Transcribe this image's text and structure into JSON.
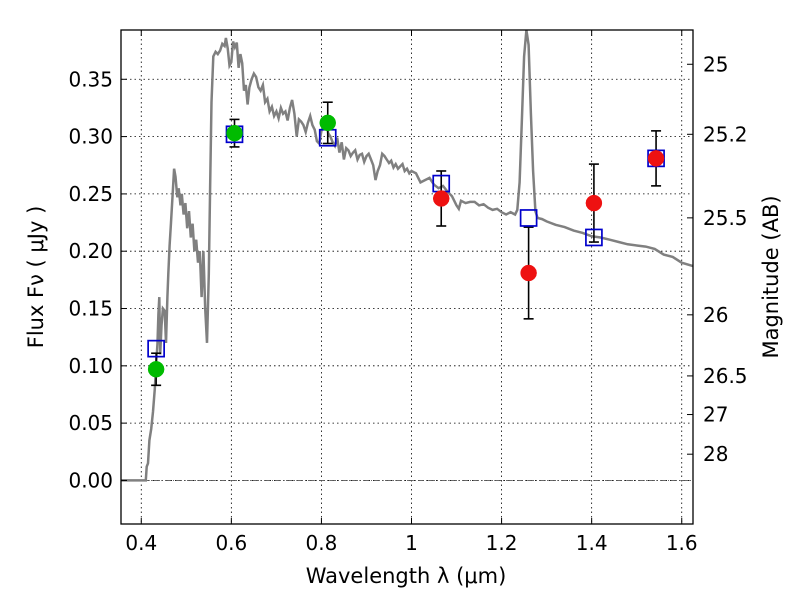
{
  "chart_data": {
    "type": "scatter",
    "xlabel": "Wavelength  λ (μm)",
    "ylabel": "Flux  Fν  ( μJy )",
    "y2label": "Magnitude (AB)",
    "xlim": [
      0.355,
      1.625
    ],
    "ylim": [
      -0.038,
      0.393
    ],
    "grid": true,
    "colors": {
      "sed": "#808080",
      "model_box": "#0000cc",
      "detection_green": "#00bb00",
      "detection_red": "#ee1111",
      "errorbar": "#000000"
    },
    "x_ticks": [
      {
        "value": 0.4,
        "label": "0.4"
      },
      {
        "value": 0.6,
        "label": "0.6"
      },
      {
        "value": 0.8,
        "label": "0.8"
      },
      {
        "value": 1.0,
        "label": "1"
      },
      {
        "value": 1.2,
        "label": "1.2"
      },
      {
        "value": 1.4,
        "label": "1.4"
      },
      {
        "value": 1.6,
        "label": "1.6"
      }
    ],
    "y_ticks": [
      {
        "value": 0.0,
        "label": "0.00"
      },
      {
        "value": 0.05,
        "label": "0.05"
      },
      {
        "value": 0.1,
        "label": "0.10"
      },
      {
        "value": 0.15,
        "label": "0.15"
      },
      {
        "value": 0.2,
        "label": "0.20"
      },
      {
        "value": 0.25,
        "label": "0.25"
      },
      {
        "value": 0.3,
        "label": "0.30"
      },
      {
        "value": 0.35,
        "label": "0.35"
      }
    ],
    "mag_ticks": [
      {
        "value": 0.3631,
        "label": "25"
      },
      {
        "value": 0.302,
        "label": "25.2"
      },
      {
        "value": 0.2291,
        "label": "25.5"
      },
      {
        "value": 0.1445,
        "label": "26"
      },
      {
        "value": 0.0912,
        "label": "26.5"
      },
      {
        "value": 0.0575,
        "label": "27"
      },
      {
        "value": 0.0229,
        "label": "28"
      }
    ],
    "series": [
      {
        "kind": "line",
        "points": [
          [
            0.355,
            0.0
          ],
          [
            0.4,
            0.0
          ],
          [
            0.41,
            0.0
          ],
          [
            0.412,
            0.012
          ],
          [
            0.415,
            0.015
          ],
          [
            0.418,
            0.035
          ],
          [
            0.422,
            0.045
          ],
          [
            0.426,
            0.06
          ],
          [
            0.43,
            0.08
          ],
          [
            0.433,
            0.1
          ],
          [
            0.436,
            0.12
          ],
          [
            0.438,
            0.145
          ],
          [
            0.44,
            0.16
          ],
          [
            0.442,
            0.11
          ],
          [
            0.445,
            0.135
          ],
          [
            0.448,
            0.15
          ],
          [
            0.452,
            0.148
          ],
          [
            0.455,
            0.12
          ],
          [
            0.458,
            0.16
          ],
          [
            0.46,
            0.18
          ],
          [
            0.463,
            0.205
          ],
          [
            0.466,
            0.225
          ],
          [
            0.47,
            0.252
          ],
          [
            0.473,
            0.272
          ],
          [
            0.476,
            0.265
          ],
          [
            0.48,
            0.247
          ],
          [
            0.483,
            0.255
          ],
          [
            0.487,
            0.24
          ],
          [
            0.49,
            0.25
          ],
          [
            0.494,
            0.232
          ],
          [
            0.498,
            0.242
          ],
          [
            0.502,
            0.22
          ],
          [
            0.506,
            0.235
          ],
          [
            0.51,
            0.212
          ],
          [
            0.514,
            0.224
          ],
          [
            0.518,
            0.2
          ],
          [
            0.522,
            0.21
          ],
          [
            0.526,
            0.19
          ],
          [
            0.53,
            0.2
          ],
          [
            0.534,
            0.16
          ],
          [
            0.538,
            0.2
          ],
          [
            0.542,
            0.15
          ],
          [
            0.546,
            0.12
          ],
          [
            0.55,
            0.18
          ],
          [
            0.553,
            0.26
          ],
          [
            0.556,
            0.33
          ],
          [
            0.56,
            0.37
          ],
          [
            0.565,
            0.374
          ],
          [
            0.57,
            0.372
          ],
          [
            0.575,
            0.375
          ],
          [
            0.58,
            0.381
          ],
          [
            0.585,
            0.379
          ],
          [
            0.588,
            0.386
          ],
          [
            0.592,
            0.377
          ],
          [
            0.596,
            0.362
          ],
          [
            0.6,
            0.365
          ],
          [
            0.604,
            0.383
          ],
          [
            0.608,
            0.378
          ],
          [
            0.612,
            0.382
          ],
          [
            0.616,
            0.36
          ],
          [
            0.62,
            0.372
          ],
          [
            0.624,
            0.364
          ],
          [
            0.628,
            0.34
          ],
          [
            0.632,
            0.345
          ],
          [
            0.636,
            0.328
          ],
          [
            0.64,
            0.343
          ],
          [
            0.645,
            0.35
          ],
          [
            0.65,
            0.355
          ],
          [
            0.655,
            0.352
          ],
          [
            0.66,
            0.343
          ],
          [
            0.665,
            0.34
          ],
          [
            0.67,
            0.345
          ],
          [
            0.675,
            0.33
          ],
          [
            0.68,
            0.333
          ],
          [
            0.685,
            0.322
          ],
          [
            0.69,
            0.326
          ],
          [
            0.695,
            0.318
          ],
          [
            0.7,
            0.322
          ],
          [
            0.705,
            0.316
          ],
          [
            0.71,
            0.325
          ],
          [
            0.715,
            0.32
          ],
          [
            0.72,
            0.322
          ],
          [
            0.725,
            0.314
          ],
          [
            0.73,
            0.325
          ],
          [
            0.735,
            0.332
          ],
          [
            0.74,
            0.32
          ],
          [
            0.745,
            0.3
          ],
          [
            0.75,
            0.315
          ],
          [
            0.755,
            0.313
          ],
          [
            0.76,
            0.31
          ],
          [
            0.765,
            0.304
          ],
          [
            0.77,
            0.312
          ],
          [
            0.775,
            0.318
          ],
          [
            0.78,
            0.31
          ],
          [
            0.785,
            0.306
          ],
          [
            0.79,
            0.296
          ],
          [
            0.795,
            0.294
          ],
          [
            0.8,
            0.305
          ],
          [
            0.81,
            0.315
          ],
          [
            0.815,
            0.303
          ],
          [
            0.82,
            0.3
          ],
          [
            0.825,
            0.295
          ],
          [
            0.83,
            0.292
          ],
          [
            0.835,
            0.299
          ],
          [
            0.84,
            0.286
          ],
          [
            0.845,
            0.295
          ],
          [
            0.85,
            0.28
          ],
          [
            0.855,
            0.29
          ],
          [
            0.86,
            0.288
          ],
          [
            0.865,
            0.283
          ],
          [
            0.87,
            0.286
          ],
          [
            0.875,
            0.288
          ],
          [
            0.88,
            0.28
          ],
          [
            0.885,
            0.284
          ],
          [
            0.89,
            0.285
          ],
          [
            0.895,
            0.278
          ],
          [
            0.9,
            0.283
          ],
          [
            0.905,
            0.285
          ],
          [
            0.91,
            0.28
          ],
          [
            0.915,
            0.275
          ],
          [
            0.92,
            0.262
          ],
          [
            0.925,
            0.27
          ],
          [
            0.93,
            0.275
          ],
          [
            0.935,
            0.285
          ],
          [
            0.94,
            0.283
          ],
          [
            0.945,
            0.28
          ],
          [
            0.95,
            0.277
          ],
          [
            0.955,
            0.279
          ],
          [
            0.96,
            0.273
          ],
          [
            0.965,
            0.276
          ],
          [
            0.97,
            0.272
          ],
          [
            0.975,
            0.274
          ],
          [
            0.98,
            0.276
          ],
          [
            0.985,
            0.27
          ],
          [
            0.99,
            0.272
          ],
          [
            0.995,
            0.268
          ],
          [
            1.0,
            0.27
          ],
          [
            1.01,
            0.268
          ],
          [
            1.02,
            0.26
          ],
          [
            1.03,
            0.262
          ],
          [
            1.04,
            0.264
          ],
          [
            1.05,
            0.258
          ],
          [
            1.06,
            0.255
          ],
          [
            1.07,
            0.257
          ],
          [
            1.08,
            0.252
          ],
          [
            1.09,
            0.248
          ],
          [
            1.1,
            0.24
          ],
          [
            1.105,
            0.237
          ],
          [
            1.11,
            0.244
          ],
          [
            1.12,
            0.242
          ],
          [
            1.13,
            0.243
          ],
          [
            1.14,
            0.243
          ],
          [
            1.15,
            0.24
          ],
          [
            1.16,
            0.241
          ],
          [
            1.17,
            0.238
          ],
          [
            1.18,
            0.236
          ],
          [
            1.19,
            0.237
          ],
          [
            1.2,
            0.234
          ],
          [
            1.21,
            0.232
          ],
          [
            1.22,
            0.234
          ],
          [
            1.23,
            0.232
          ],
          [
            1.235,
            0.236
          ],
          [
            1.24,
            0.26
          ],
          [
            1.245,
            0.315
          ],
          [
            1.25,
            0.37
          ],
          [
            1.255,
            0.393
          ],
          [
            1.26,
            0.38
          ],
          [
            1.265,
            0.32
          ],
          [
            1.27,
            0.27
          ],
          [
            1.275,
            0.235
          ],
          [
            1.28,
            0.229
          ],
          [
            1.29,
            0.228
          ],
          [
            1.3,
            0.226
          ],
          [
            1.32,
            0.223
          ],
          [
            1.34,
            0.221
          ],
          [
            1.36,
            0.218
          ],
          [
            1.38,
            0.216
          ],
          [
            1.4,
            0.213
          ],
          [
            1.42,
            0.212
          ],
          [
            1.44,
            0.21
          ],
          [
            1.46,
            0.208
          ],
          [
            1.48,
            0.206
          ],
          [
            1.5,
            0.205
          ],
          [
            1.52,
            0.204
          ],
          [
            1.54,
            0.202
          ],
          [
            1.56,
            0.197
          ],
          [
            1.58,
            0.195
          ],
          [
            1.6,
            0.19
          ],
          [
            1.625,
            0.187
          ]
        ]
      },
      {
        "kind": "model_boxes",
        "points": [
          [
            0.433,
            0.115
          ],
          [
            0.607,
            0.302
          ],
          [
            0.814,
            0.299
          ],
          [
            1.066,
            0.259
          ],
          [
            1.26,
            0.229
          ],
          [
            1.405,
            0.212
          ],
          [
            1.543,
            0.281
          ]
        ]
      },
      {
        "kind": "detections",
        "points": [
          {
            "x": 0.433,
            "y": 0.097,
            "err": 0.014,
            "color": "green"
          },
          {
            "x": 0.607,
            "y": 0.303,
            "err": 0.012,
            "color": "green"
          },
          {
            "x": 0.814,
            "y": 0.312,
            "err": 0.018,
            "color": "green"
          },
          {
            "x": 1.066,
            "y": 0.246,
            "err": 0.024,
            "color": "red"
          },
          {
            "x": 1.26,
            "y": 0.181,
            "err": 0.04,
            "color": "red"
          },
          {
            "x": 1.405,
            "y": 0.242,
            "err": 0.034,
            "color": "red"
          },
          {
            "x": 1.543,
            "y": 0.281,
            "err": 0.024,
            "color": "red"
          }
        ]
      }
    ]
  }
}
